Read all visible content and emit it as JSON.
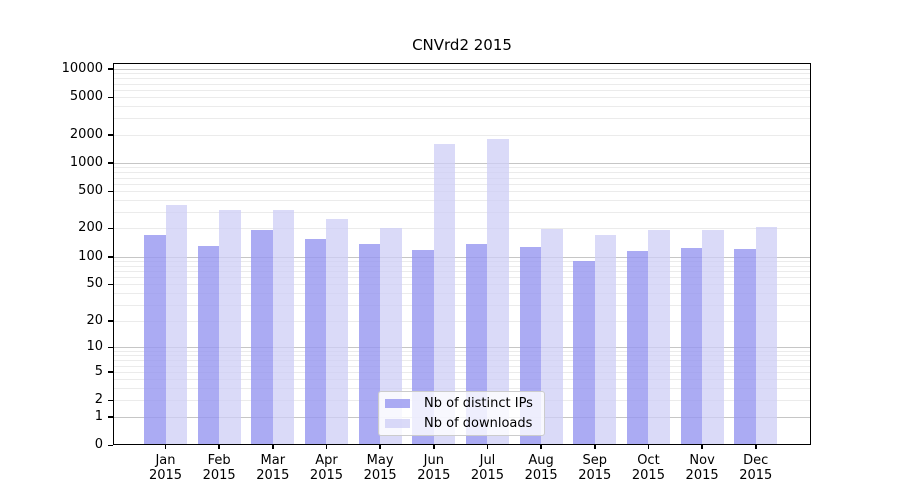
{
  "title": "CNVrd2 2015",
  "chart_data": {
    "type": "bar",
    "scale": "log10(1+y)",
    "categories": [
      "Jan",
      "Feb",
      "Mar",
      "Apr",
      "May",
      "Jun",
      "Jul",
      "Aug",
      "Sep",
      "Oct",
      "Nov",
      "Dec"
    ],
    "category_year": "2015",
    "series": [
      {
        "name": "Nb of distinct IPs",
        "color": "#9696f0",
        "alpha": 0.8,
        "values": [
          170,
          131,
          191,
          156,
          138,
          118,
          136,
          128,
          90,
          116,
          123,
          121
        ]
      },
      {
        "name": "Nb of downloads",
        "color": "#cdcdf5",
        "alpha": 0.75,
        "values": [
          355,
          313,
          318,
          253,
          204,
          1580,
          1815,
          196,
          170,
          195,
          192,
          207
        ]
      }
    ],
    "yticks": [
      0,
      1,
      2,
      5,
      10,
      20,
      50,
      100,
      200,
      500,
      1000,
      2000,
      5000,
      10000
    ],
    "ylim": [
      0,
      11300
    ],
    "xlabel": "",
    "ylabel": "",
    "grid": "horizontal, minor + major log gridlines",
    "legend_position": "inside bottom-center",
    "colors": {
      "major_gridline": "#c6c6c6",
      "minor_gridline": "#ebebeb",
      "axis_frame": "#000000",
      "text": "#000000"
    }
  }
}
